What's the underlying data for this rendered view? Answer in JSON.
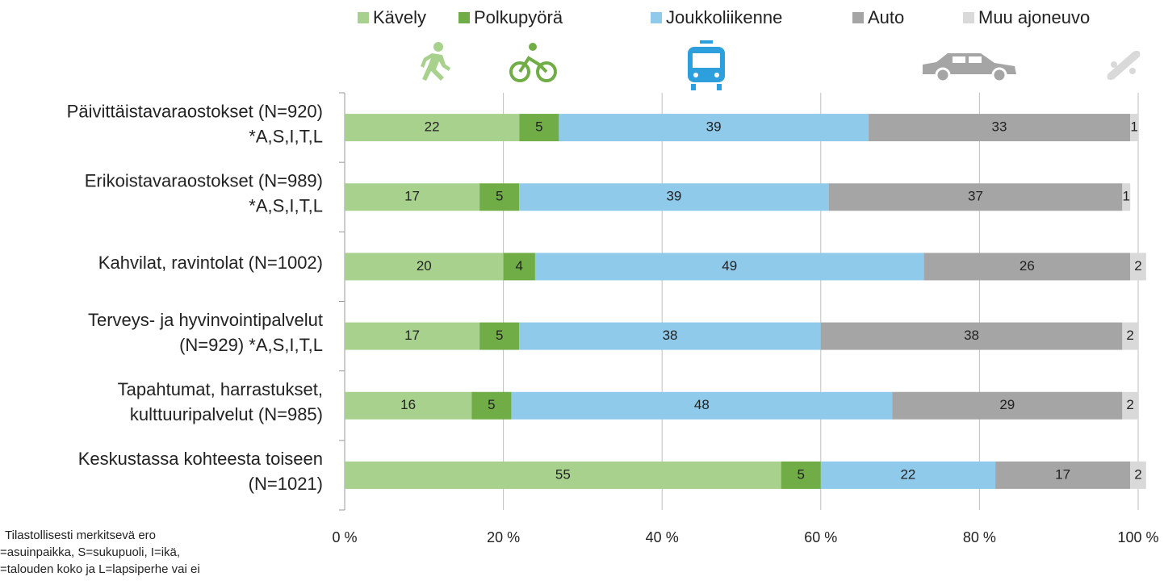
{
  "chart_data": {
    "type": "stacked_bar_horizontal",
    "categories": [
      [
        "Päivittäistavaraostokset (N=920)",
        "*A,S,I,T,L"
      ],
      [
        "Erikoistavaraostokset (N=989)",
        "*A,S,I,T,L"
      ],
      [
        "Kahvilat, ravintolat (N=1002)"
      ],
      [
        "Terveys- ja hyvinvointipalvelut",
        "(N=929) *A,S,I,T,L"
      ],
      [
        "Tapahtumat, harrastukset,",
        "kulttuuripalvelut (N=985)"
      ],
      [
        "Keskustassa kohteesta toiseen",
        "(N=1021)"
      ]
    ],
    "series": [
      {
        "name": "Kävely",
        "color": "#a9d18e",
        "values": [
          22,
          17,
          20,
          17,
          16,
          55
        ]
      },
      {
        "name": "Polkupyörä",
        "color": "#70ad47",
        "values": [
          5,
          5,
          4,
          5,
          5,
          5
        ]
      },
      {
        "name": "Joukkoliikenne",
        "color": "#8fcaeb",
        "values": [
          39,
          39,
          49,
          38,
          48,
          22
        ]
      },
      {
        "name": "Auto",
        "color": "#a5a5a5",
        "values": [
          33,
          37,
          26,
          38,
          29,
          17
        ]
      },
      {
        "name": "Muu ajoneuvo",
        "color": "#d9d9d9",
        "values": [
          1,
          1,
          2,
          2,
          2,
          2
        ]
      }
    ],
    "xlim": [
      0,
      100
    ],
    "xticks": [
      {
        "value": 0,
        "label": "0 %"
      },
      {
        "value": 20,
        "label": "20 %"
      },
      {
        "value": 40,
        "label": "40 %"
      },
      {
        "value": 60,
        "label": "60 %"
      },
      {
        "value": 80,
        "label": "80 %"
      },
      {
        "value": 100,
        "label": "100 %"
      }
    ],
    "grid": true,
    "legend": "top",
    "footnote": [
      "Tilastollisesti merkitsevä ero",
      "=asuinpaikka, S=sukupuoli, I=ikä,",
      "=talouden koko ja L=lapsiperhe vai ei"
    ]
  }
}
